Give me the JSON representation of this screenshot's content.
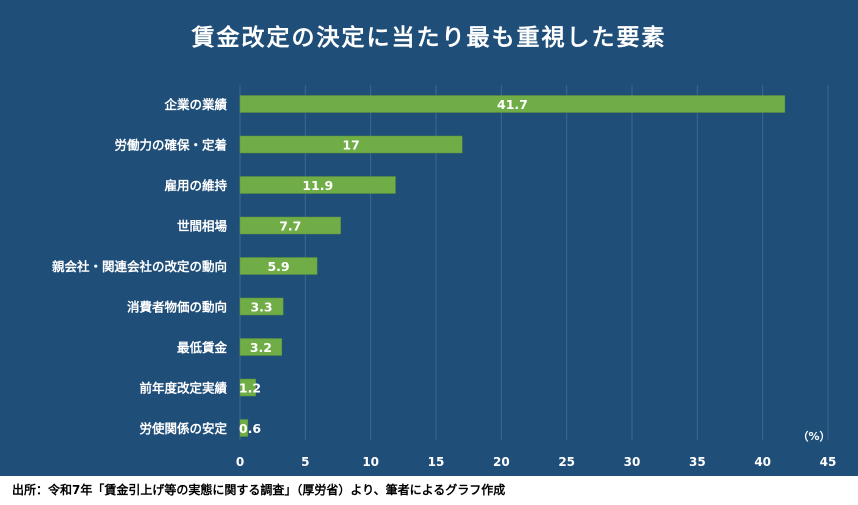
{
  "chart_data": {
    "type": "bar",
    "orientation": "horizontal",
    "title": "賃金改定の決定に当たり最も重視した要素",
    "unit_label": "（%）",
    "categories": [
      "企業の業績",
      "労働力の確保・定着",
      "雇用の維持",
      "世間相場",
      "親会社・関連会社の改定の動向",
      "消費者物価の動向",
      "最低賃金",
      "前年度改定実績",
      "労使関係の安定"
    ],
    "values": [
      41.7,
      17,
      11.9,
      7.7,
      5.9,
      3.3,
      3.2,
      1.2,
      0.6
    ],
    "value_labels": [
      "41.7",
      "17",
      "11.9",
      "7.7",
      "5.9",
      "3.3",
      "3.2",
      "1.2",
      "0.6"
    ],
    "xlim": [
      0,
      45
    ],
    "xticks": [
      "0",
      "5",
      "10",
      "15",
      "20",
      "25",
      "30",
      "35",
      "40",
      "45"
    ],
    "grid": "vertical",
    "colors": {
      "background": "#1f4e79",
      "bar": "#70ad47",
      "grid": "#3e6a93",
      "text": "#ffffff"
    }
  },
  "source": "出所：令和7年「賃金引上げ等の実態に関する調査」（厚労省）より、筆者によるグラフ作成"
}
